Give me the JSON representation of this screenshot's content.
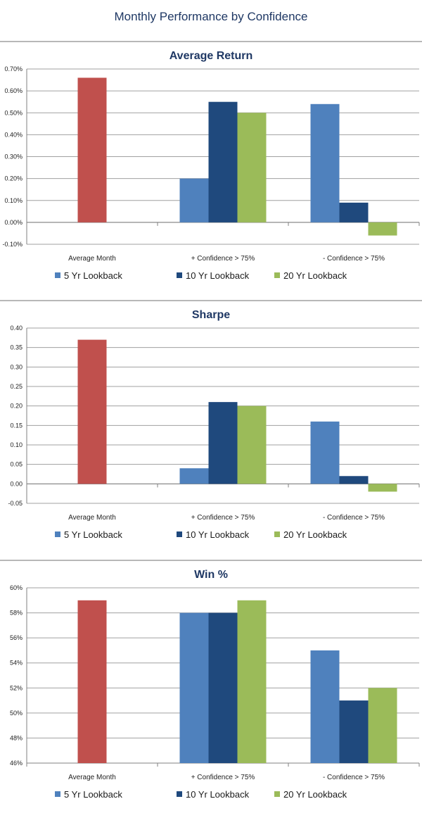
{
  "page": {
    "title": "Monthly Performance by Confidence"
  },
  "colors": {
    "average_month": "#c0504d",
    "lookback_5": "#4f81bd",
    "lookback_10": "#1f497d",
    "lookback_20": "#9bbb59",
    "title": "#1f3864"
  },
  "chart_data": [
    {
      "type": "bar",
      "title": "Average Return",
      "categories": [
        "Average Month",
        "+ Confidence > 75%",
        "- Confidence > 75%"
      ],
      "series": [
        {
          "name": "",
          "values": [
            0.66,
            null,
            null
          ]
        },
        {
          "name": "5 Yr Lookback",
          "values": [
            null,
            0.2,
            0.54
          ]
        },
        {
          "name": "10 Yr Lookback",
          "values": [
            null,
            0.55,
            0.09
          ]
        },
        {
          "name": "20 Yr Lookback",
          "values": [
            null,
            0.5,
            -0.06
          ]
        }
      ],
      "ylim": [
        -0.1,
        0.7
      ],
      "yticks": [
        "-0.10%",
        "0.00%",
        "0.10%",
        "0.20%",
        "0.30%",
        "0.40%",
        "0.50%",
        "0.60%",
        "0.70%"
      ],
      "grid": true,
      "legend": "bottom"
    },
    {
      "type": "bar",
      "title": "Sharpe",
      "categories": [
        "Average Month",
        "+ Confidence > 75%",
        "- Confidence > 75%"
      ],
      "series": [
        {
          "name": "",
          "values": [
            0.37,
            null,
            null
          ]
        },
        {
          "name": "5 Yr Lookback",
          "values": [
            null,
            0.04,
            0.16
          ]
        },
        {
          "name": "10 Yr Lookback",
          "values": [
            null,
            0.21,
            0.02
          ]
        },
        {
          "name": "20 Yr Lookback",
          "values": [
            null,
            0.2,
            -0.02
          ]
        }
      ],
      "ylim": [
        -0.05,
        0.4
      ],
      "yticks": [
        "-0.05",
        "0.00",
        "0.05",
        "0.10",
        "0.15",
        "0.20",
        "0.25",
        "0.30",
        "0.35",
        "0.40"
      ],
      "grid": true,
      "legend": "bottom"
    },
    {
      "type": "bar",
      "title": "Win %",
      "categories": [
        "Average Month",
        "+ Confidence > 75%",
        "- Confidence > 75%"
      ],
      "series": [
        {
          "name": "",
          "values": [
            59,
            null,
            null
          ]
        },
        {
          "name": "5 Yr Lookback",
          "values": [
            null,
            58,
            55
          ]
        },
        {
          "name": "10 Yr Lookback",
          "values": [
            null,
            58,
            51
          ]
        },
        {
          "name": "20 Yr Lookback",
          "values": [
            null,
            59,
            52
          ]
        }
      ],
      "ylim": [
        46,
        60
      ],
      "yticks": [
        "46%",
        "48%",
        "50%",
        "52%",
        "54%",
        "56%",
        "58%",
        "60%"
      ],
      "grid": true,
      "legend": "bottom"
    }
  ]
}
